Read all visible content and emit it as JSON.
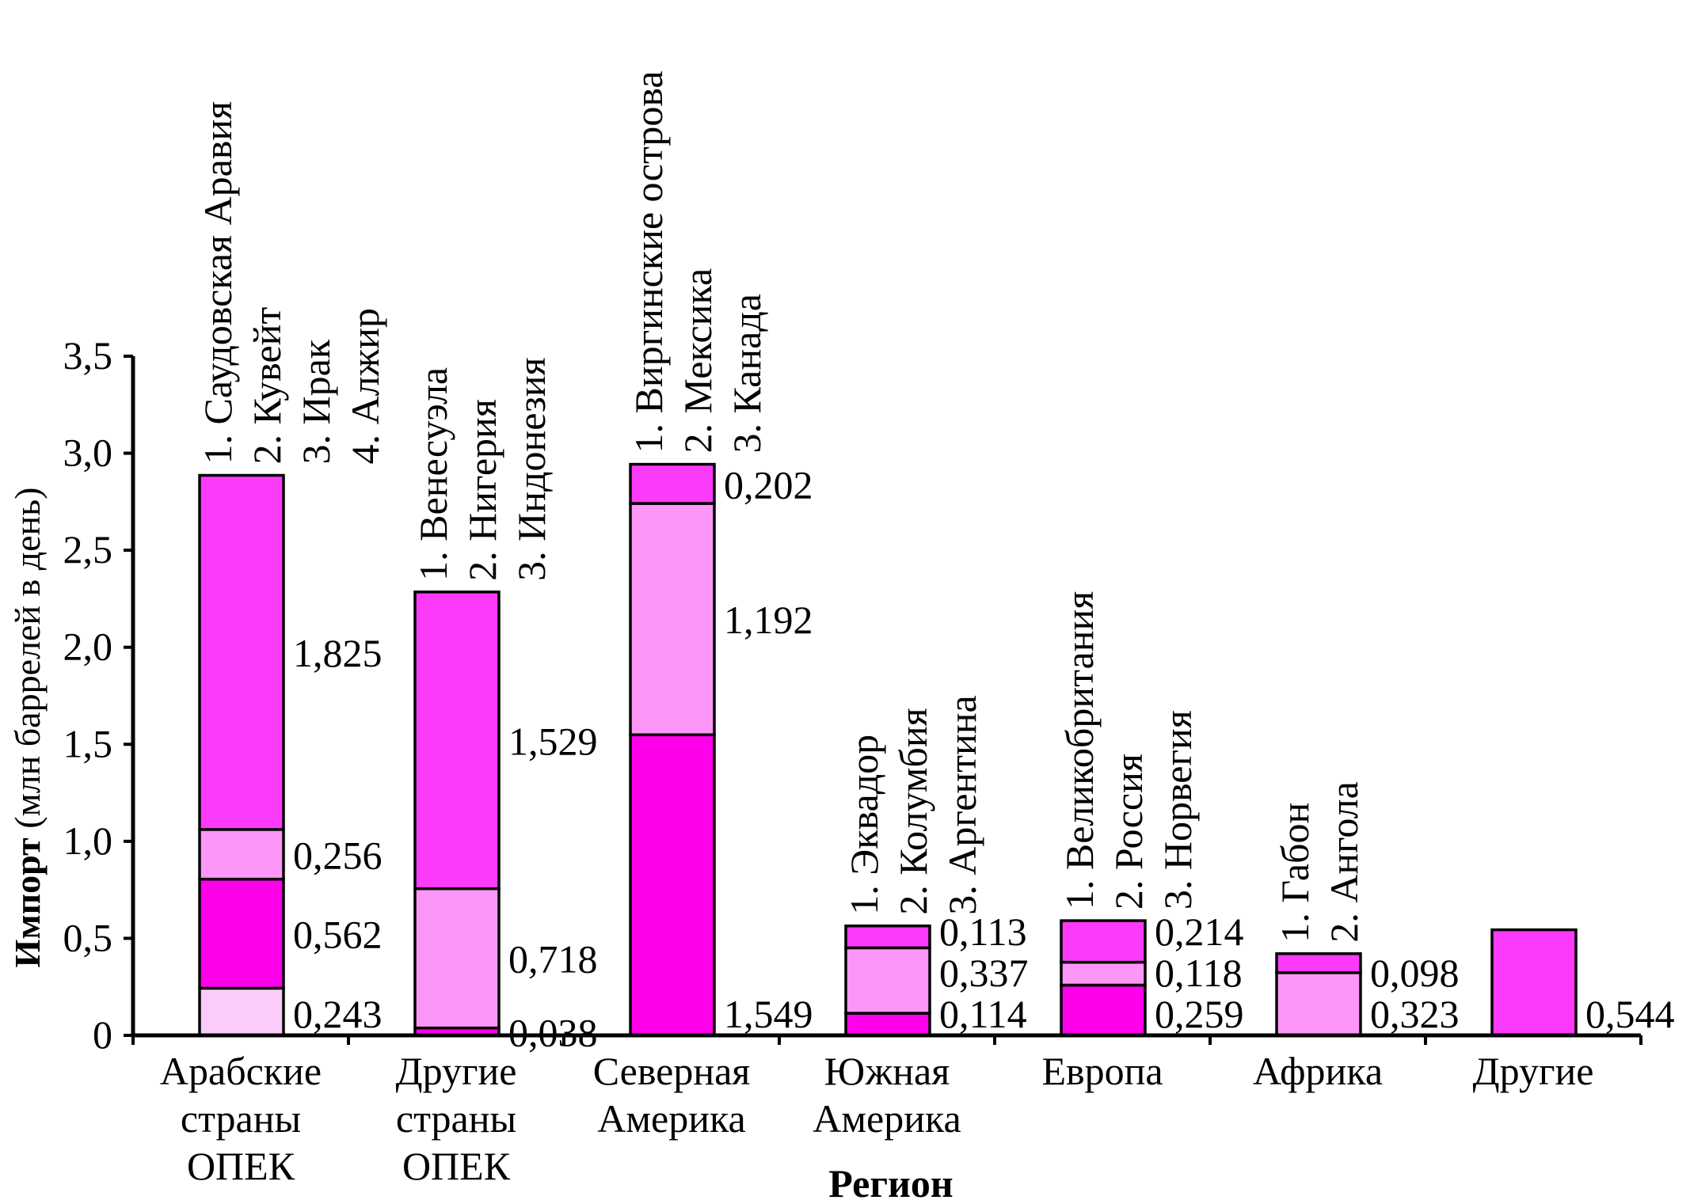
{
  "chart_data": {
    "type": "bar",
    "stacked": true,
    "ylabel_bold": "Импорт",
    "ylabel_rest": " (млн баррелей в день)",
    "xlabel": "Регион",
    "ylim": [
      0,
      3.5
    ],
    "y_ticks": [
      "0",
      "0,5",
      "1,0",
      "1,5",
      "2,0",
      "2,5",
      "3,0",
      "3,5"
    ],
    "colors": [
      "#fbccf8",
      "#fe00ea",
      "#fd97f7",
      "#fc3afa"
    ],
    "groups": [
      {
        "lines": [
          "Арабские",
          "страны",
          "ОПЕК"
        ],
        "legend": [
          "1. Саудовская Аравия",
          "2. Кувейт",
          "3. Ирак",
          "4. Алжир"
        ],
        "segments": [
          {
            "value": 0.243,
            "label": "0,243",
            "color": 0
          },
          {
            "value": 0.562,
            "label": "0,562",
            "color": 1
          },
          {
            "value": 0.256,
            "label": "0,256",
            "color": 2
          },
          {
            "value": 1.825,
            "label": "1,825",
            "color": 3
          }
        ]
      },
      {
        "lines": [
          "Другие",
          "страны",
          "ОПЕК"
        ],
        "legend": [
          "1. Венесуэла",
          "2. Нигерия",
          "3. Индонезия"
        ],
        "segments": [
          {
            "value": 0.038,
            "label": "0,038",
            "color": 1
          },
          {
            "value": 0.718,
            "label": "0,718",
            "color": 2
          },
          {
            "value": 1.529,
            "label": "1,529",
            "color": 3
          }
        ]
      },
      {
        "lines": [
          "Северная",
          "Америка"
        ],
        "legend": [
          "1. Виргинские острова",
          "2. Мексика",
          "3. Канада"
        ],
        "segments": [
          {
            "value": 1.549,
            "label": "1,549",
            "color": 1
          },
          {
            "value": 1.192,
            "label": "1,192",
            "color": 2
          },
          {
            "value": 0.202,
            "label": "0,202",
            "color": 3
          }
        ]
      },
      {
        "lines": [
          "Южная",
          "Америка"
        ],
        "legend": [
          "1. Эквадор",
          "2. Колумбия",
          "3. Аргентина"
        ],
        "segments": [
          {
            "value": 0.114,
            "label": "0,114",
            "color": 1
          },
          {
            "value": 0.337,
            "label": "0,337",
            "color": 2
          },
          {
            "value": 0.113,
            "label": "0,113",
            "color": 3
          }
        ]
      },
      {
        "lines": [
          "Европа"
        ],
        "legend": [
          "1. Великобритания",
          "2. Россия",
          "3. Норвегия"
        ],
        "segments": [
          {
            "value": 0.259,
            "label": "0,259",
            "color": 1
          },
          {
            "value": 0.118,
            "label": "0,118",
            "color": 2
          },
          {
            "value": 0.214,
            "label": "0,214",
            "color": 3
          }
        ]
      },
      {
        "lines": [
          "Африка"
        ],
        "legend": [
          "1. Габон",
          "2. Ангола"
        ],
        "segments": [
          {
            "value": 0.323,
            "label": "0,323",
            "color": 2
          },
          {
            "value": 0.098,
            "label": "0,098",
            "color": 3
          }
        ]
      },
      {
        "lines": [
          "Другие"
        ],
        "legend": [],
        "segments": [
          {
            "value": 0.544,
            "label": "0,544",
            "color": 3
          }
        ]
      }
    ]
  }
}
